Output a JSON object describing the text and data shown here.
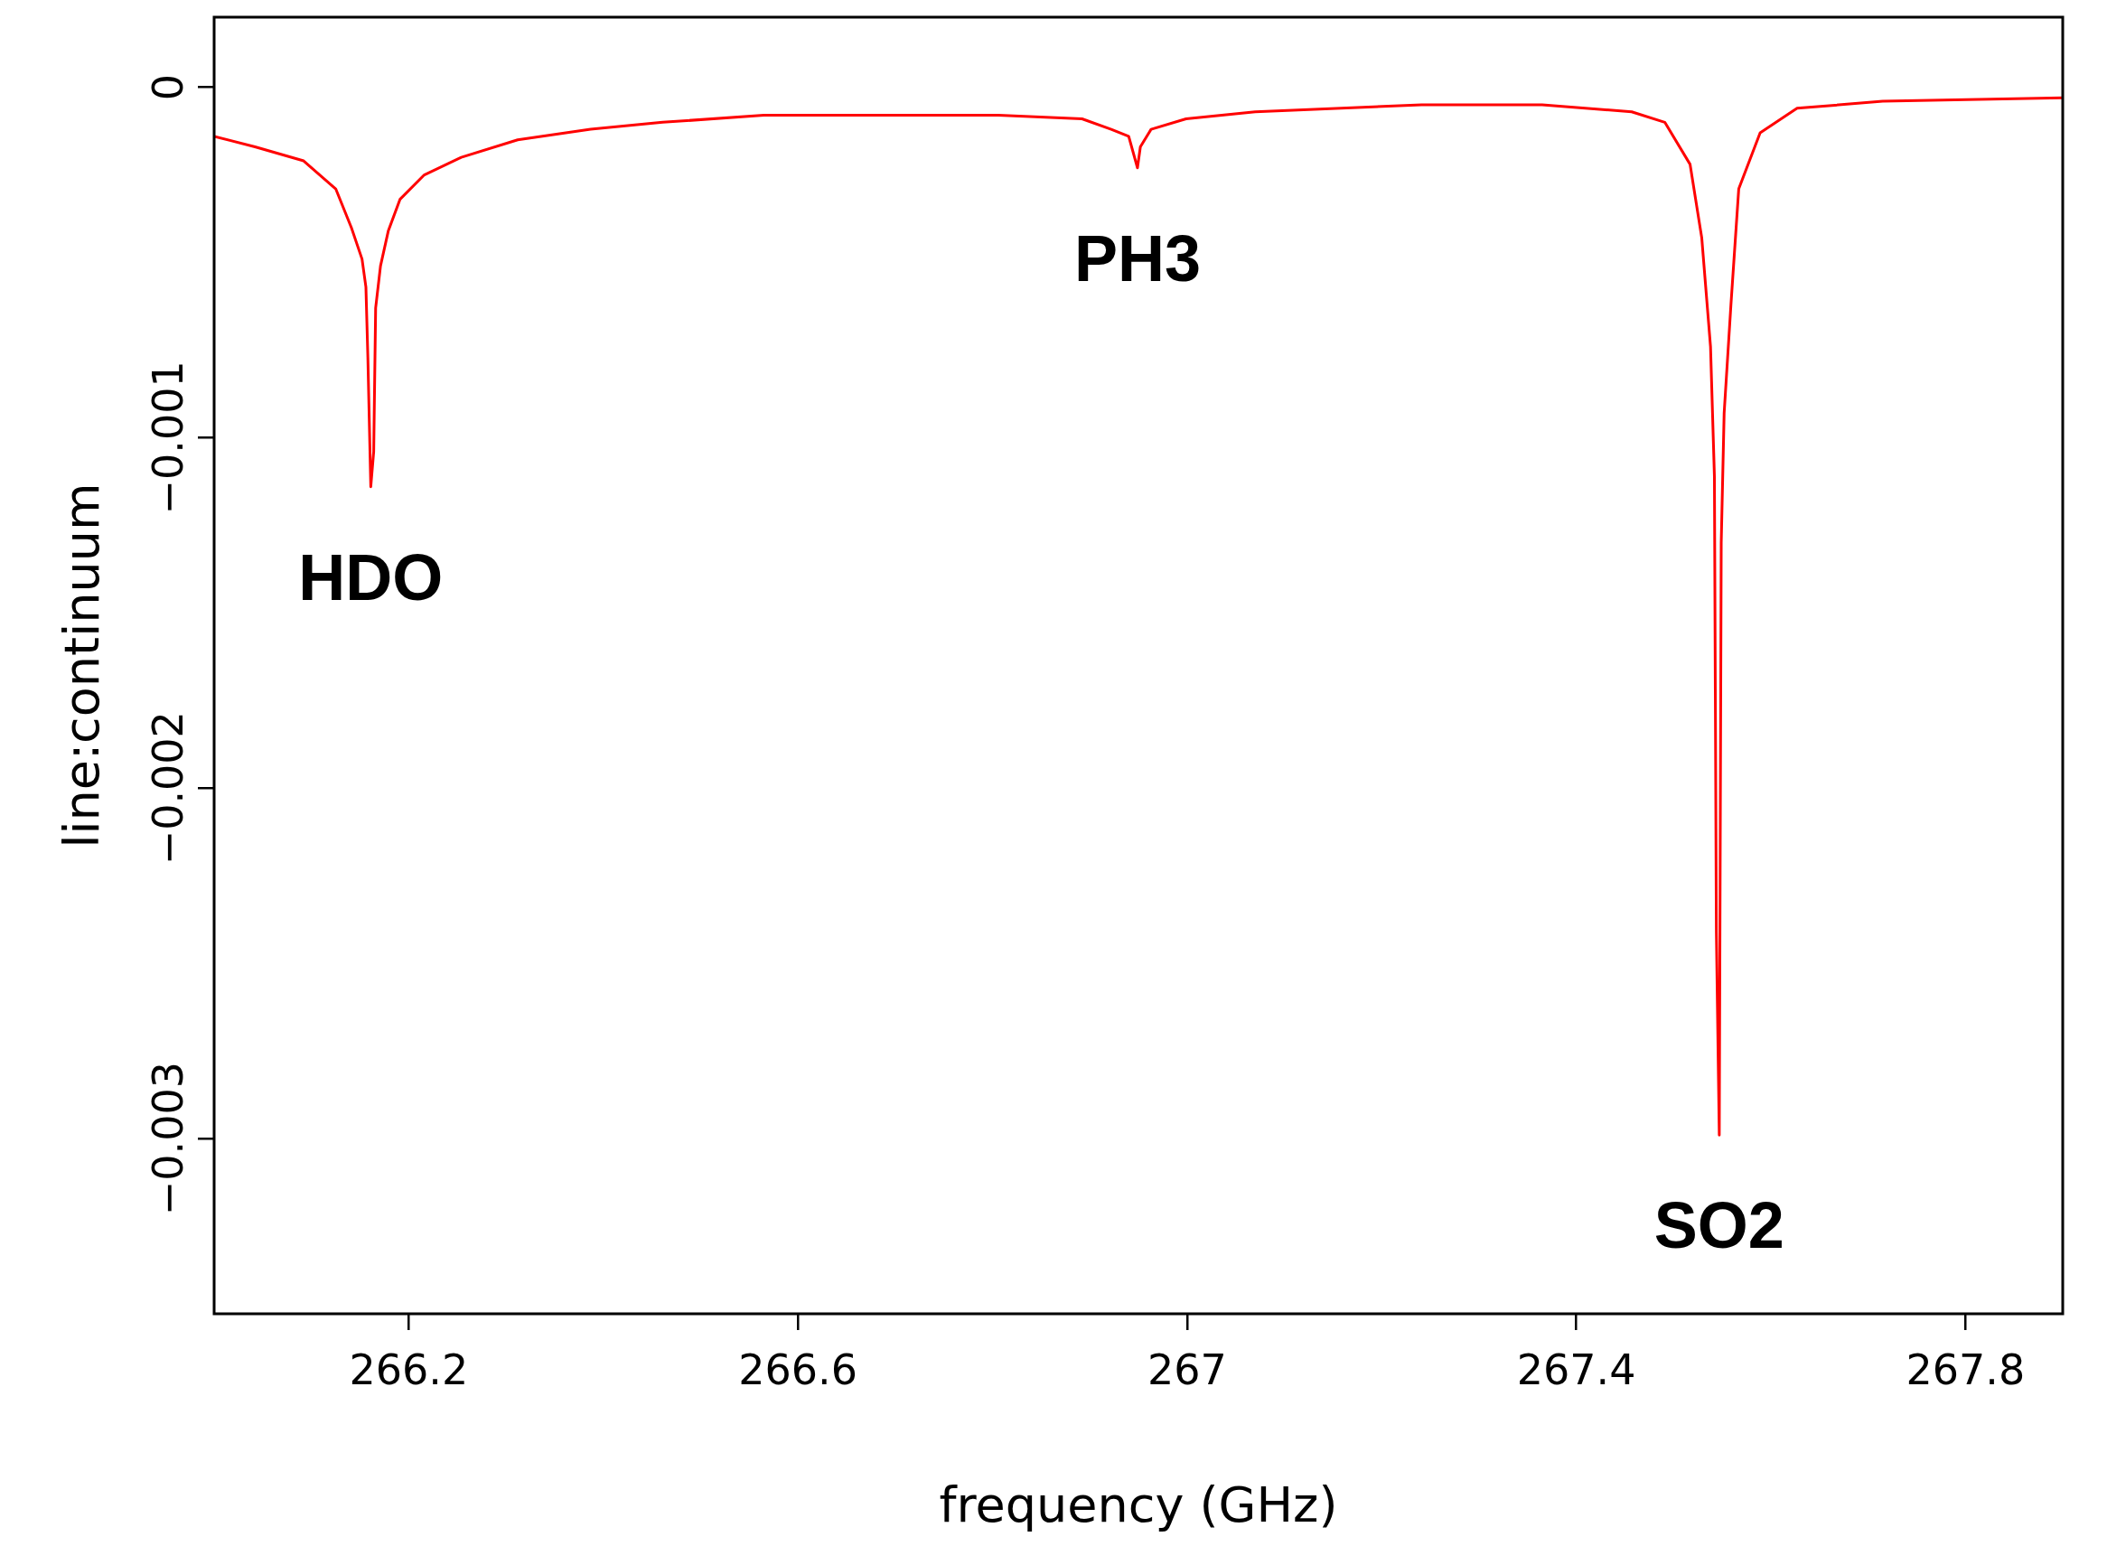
{
  "chart_data": {
    "type": "line",
    "xlabel": "frequency (GHz)",
    "ylabel": "line:continuum",
    "marker": "none",
    "x": [
      266.0,
      266.042,
      266.092,
      266.125,
      266.141,
      266.152,
      266.156,
      266.158,
      266.161,
      266.164,
      266.166,
      266.171,
      266.179,
      266.191,
      266.216,
      266.254,
      266.312,
      266.387,
      266.461,
      266.565,
      266.647,
      266.806,
      266.892,
      266.922,
      266.94,
      266.949,
      266.952,
      266.963,
      266.999,
      267.07,
      267.241,
      267.365,
      267.457,
      267.491,
      267.517,
      267.529,
      267.538,
      267.542,
      267.544,
      267.547,
      267.549,
      267.552,
      267.559,
      267.567,
      267.589,
      267.627,
      267.715,
      267.9
    ],
    "series": [
      {
        "color": "#ff0000",
        "values": [
          -0.00014,
          -0.00017,
          -0.00021,
          -0.00029,
          -0.0004,
          -0.00049,
          -0.00057,
          -0.00077,
          -0.00114,
          -0.00104,
          -0.00063,
          -0.00051,
          -0.00041,
          -0.00032,
          -0.00025,
          -0.0002,
          -0.00015,
          -0.00012,
          -0.0001,
          -8e-05,
          -8e-05,
          -8e-05,
          -9e-05,
          -0.00012,
          -0.00014,
          -0.00023,
          -0.00017,
          -0.00012,
          -9e-05,
          -7e-05,
          -5e-05,
          -5e-05,
          -7e-05,
          -0.0001,
          -0.00022,
          -0.00043,
          -0.00074,
          -0.00111,
          -0.00241,
          -0.00299,
          -0.0013,
          -0.00093,
          -0.00062,
          -0.00029,
          -0.00013,
          -6e-05,
          -4e-05,
          -3e-05
        ]
      }
    ],
    "xlim": [
      266.0,
      267.9
    ],
    "xticks": [
      266.2,
      266.6,
      267,
      267.4,
      267.8
    ],
    "ylim": [
      -0.0035,
      0.0002
    ],
    "yticks": [
      0,
      {
        "value": -0.001,
        "label": "−0.001"
      },
      {
        "value": -0.002,
        "label": "−0.002"
      },
      {
        "value": -0.003,
        "label": "−0.003"
      }
    ],
    "annotations": [
      {
        "text": "HDO",
        "x": 266.161,
        "y": -0.00114
      },
      {
        "text": "PH3",
        "x": 266.949,
        "y": -0.00023
      },
      {
        "text": "SO2",
        "x": 267.547,
        "y": -0.00299
      }
    ]
  }
}
